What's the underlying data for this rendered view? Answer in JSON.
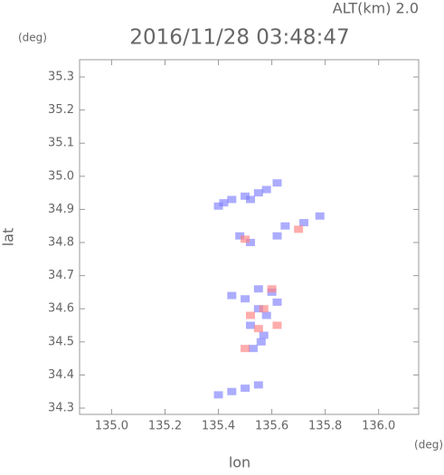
{
  "chart_data": {
    "type": "scatter",
    "title": "2016/11/28 03:48:47",
    "altitude_label": "ALT(km) 2.0",
    "y_unit": "(deg)",
    "x_unit": "(deg)",
    "xlabel": "lon",
    "ylabel": "lat",
    "xlim": [
      134.88,
      136.15
    ],
    "ylim": [
      34.281,
      35.352
    ],
    "xticks": [
      {
        "value": 135,
        "label": "135.0"
      },
      135.2,
      135.4,
      135.6,
      135.8,
      {
        "value": 136,
        "label": "136.0"
      }
    ],
    "yticks": [
      34.3,
      34.4,
      34.5,
      34.6,
      34.7,
      34.8,
      34.9,
      {
        "value": 35,
        "label": "35.0"
      },
      35.1,
      35.2,
      35.3
    ],
    "series": [
      {
        "color": "#8080ff",
        "x": [
          135.4,
          135.42,
          135.45,
          135.5,
          135.52,
          135.55,
          135.58,
          135.62,
          135.48,
          135.52,
          135.62,
          135.65,
          135.72,
          135.78,
          135.55,
          135.6,
          135.5,
          135.55,
          135.58,
          135.52,
          135.57,
          135.53,
          135.56,
          135.62,
          135.45,
          135.4,
          135.45,
          135.5,
          135.55
        ],
        "values": [
          34.91,
          34.92,
          34.93,
          34.94,
          34.93,
          34.95,
          34.96,
          34.98,
          34.82,
          34.8,
          34.82,
          34.85,
          34.86,
          34.88,
          34.66,
          34.65,
          34.63,
          34.6,
          34.58,
          34.55,
          34.52,
          34.48,
          34.5,
          34.62,
          34.64,
          34.34,
          34.35,
          34.36,
          34.37
        ]
      },
      {
        "color": "#ff8080",
        "x": [
          135.6,
          135.57,
          135.52,
          135.55,
          135.5,
          135.62,
          135.5,
          135.7
        ],
        "values": [
          34.66,
          34.6,
          34.58,
          34.54,
          34.48,
          34.55,
          34.81,
          34.84
        ]
      }
    ]
  }
}
